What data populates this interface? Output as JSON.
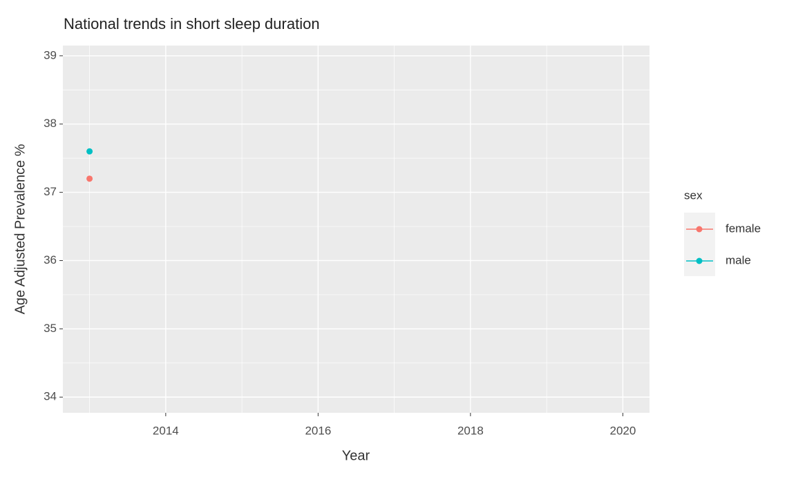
{
  "chart_data": {
    "type": "line",
    "title": "National trends in short sleep duration",
    "xlabel": "Year",
    "ylabel": "Age Adjusted Prevalence %",
    "x": [
      2013
    ],
    "series": [
      {
        "name": "female",
        "color": "#F8766D",
        "values": [
          37.2
        ]
      },
      {
        "name": "male",
        "color": "#00BFC4",
        "values": [
          37.6
        ]
      }
    ],
    "legend_title": "sex",
    "legend": "right",
    "xlim": [
      2012.65,
      2020.35
    ],
    "xticks": [
      2014,
      2016,
      2018,
      2020
    ],
    "xminorticks": [
      2013,
      2015,
      2017,
      2019
    ],
    "ylim": [
      33.77,
      39.15
    ],
    "yticks": [
      34,
      35,
      36,
      37,
      38,
      39
    ],
    "yminorticks": [
      34.5,
      35.5,
      36.5,
      37.5,
      38.5
    ],
    "grid": true
  }
}
